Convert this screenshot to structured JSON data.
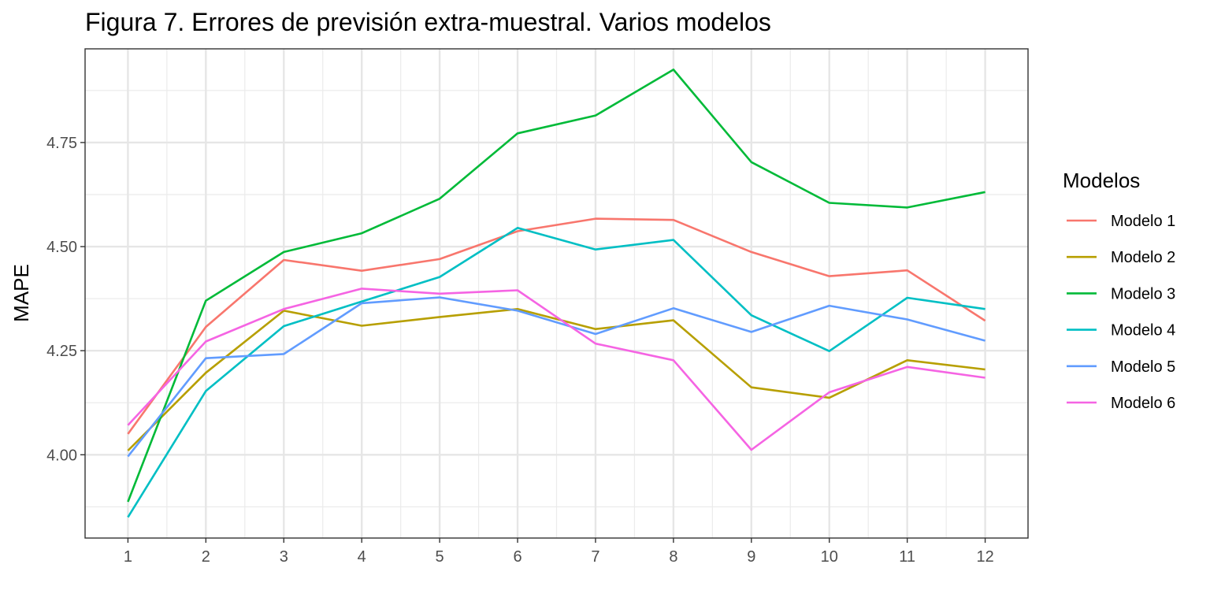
{
  "chart_data": {
    "type": "line",
    "title": "Figura 7. Errores de previsión extra-muestral. Varios modelos",
    "xlabel": "",
    "ylabel": "MAPE",
    "x": [
      1,
      2,
      3,
      4,
      5,
      6,
      7,
      8,
      9,
      10,
      11,
      12
    ],
    "x_tick_labels": [
      "1",
      "2",
      "3",
      "4",
      "5",
      "6",
      "7",
      "8",
      "9",
      "10",
      "11",
      "12"
    ],
    "xlim": [
      0.45,
      12.55
    ],
    "ylim": [
      3.8,
      4.975
    ],
    "y_ticks": [
      4.0,
      4.25,
      4.5,
      4.75
    ],
    "y_tick_labels": [
      "4.00",
      "4.25",
      "4.50",
      "4.75"
    ],
    "grid": true,
    "legend": {
      "title": "Modelos",
      "position": "right"
    },
    "series": [
      {
        "name": "Modelo 1",
        "color": "#F8766D",
        "values": [
          4.05,
          4.307,
          4.468,
          4.442,
          4.47,
          4.537,
          4.567,
          4.564,
          4.487,
          4.429,
          4.443,
          4.322
        ]
      },
      {
        "name": "Modelo 2",
        "color": "#B79F00",
        "values": [
          4.01,
          4.197,
          4.346,
          4.31,
          4.331,
          4.35,
          4.302,
          4.323,
          4.162,
          4.137,
          4.227,
          4.205
        ]
      },
      {
        "name": "Modelo 3",
        "color": "#00BA38",
        "values": [
          3.887,
          4.37,
          4.487,
          4.532,
          4.615,
          4.772,
          4.815,
          4.925,
          4.703,
          4.605,
          4.594,
          4.631
        ]
      },
      {
        "name": "Modelo 4",
        "color": "#00BFC4",
        "values": [
          3.85,
          4.153,
          4.309,
          4.368,
          4.427,
          4.545,
          4.493,
          4.516,
          4.335,
          4.249,
          4.377,
          4.35
        ]
      },
      {
        "name": "Modelo 5",
        "color": "#619CFF",
        "values": [
          3.996,
          4.232,
          4.242,
          4.364,
          4.378,
          4.346,
          4.29,
          4.352,
          4.295,
          4.358,
          4.325,
          4.274
        ]
      },
      {
        "name": "Modelo 6",
        "color": "#F564E3",
        "values": [
          4.071,
          4.272,
          4.35,
          4.399,
          4.387,
          4.395,
          4.267,
          4.227,
          4.012,
          4.15,
          4.211,
          4.185
        ]
      }
    ]
  }
}
